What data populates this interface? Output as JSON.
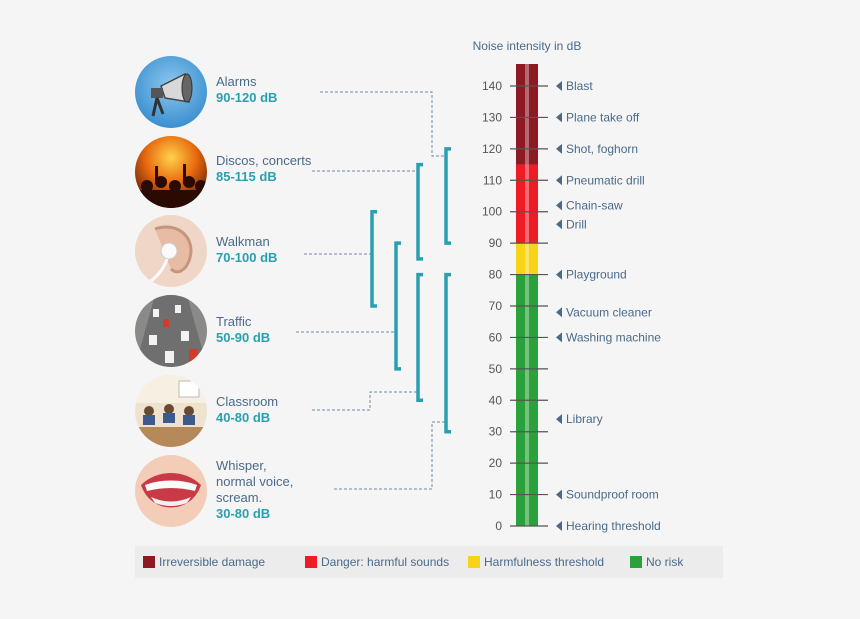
{
  "scale": {
    "title": "Noise intensity in dB",
    "ticks": [
      "0",
      "10",
      "20",
      "30",
      "40",
      "50",
      "60",
      "70",
      "80",
      "90",
      "100",
      "110",
      "120",
      "130",
      "140"
    ],
    "min": 0,
    "max": 140,
    "bands": [
      {
        "from": 0,
        "to": 80,
        "color": "#2aa13a"
      },
      {
        "from": 80,
        "to": 90,
        "color": "#f7d417"
      },
      {
        "from": 90,
        "to": 115,
        "color": "#ee1c25"
      },
      {
        "from": 115,
        "to": 145,
        "color": "#8b1a22"
      }
    ],
    "markers": [
      {
        "label": "Blast",
        "db": 140
      },
      {
        "label": "Plane take off",
        "db": 130
      },
      {
        "label": "Shot, foghorn",
        "db": 120
      },
      {
        "label": "Pneumatic drill",
        "db": 110
      },
      {
        "label": "Chain-saw",
        "db": 102
      },
      {
        "label": "Drill",
        "db": 96
      },
      {
        "label": "Playground",
        "db": 80
      },
      {
        "label": "Vacuum cleaner",
        "db": 68
      },
      {
        "label": "Washing machine",
        "db": 60
      },
      {
        "label": "Library",
        "db": 34
      },
      {
        "label": "Soundproof room",
        "db": 10
      },
      {
        "label": "Hearing threshold",
        "db": 0
      }
    ]
  },
  "sources": [
    {
      "name": "Alarms",
      "range": "90-120 dB",
      "icon": "alarm-siren-icon",
      "from": 90,
      "to": 120
    },
    {
      "name": "Discos, concerts",
      "range": "85-115 dB",
      "icon": "concert-crowd-icon",
      "from": 85,
      "to": 115
    },
    {
      "name": "Walkman",
      "range": "70-100 dB",
      "icon": "earphone-icon",
      "from": 70,
      "to": 100
    },
    {
      "name": "Traffic",
      "range": "50-90 dB",
      "icon": "traffic-icon",
      "from": 50,
      "to": 90
    },
    {
      "name": "Classroom",
      "range": "40-80 dB",
      "icon": "classroom-icon",
      "from": 40,
      "to": 80
    },
    {
      "name": "Whisper,\nnormal voice,\nscream.",
      "range": "30-80 dB",
      "icon": "mouth-icon",
      "from": 30,
      "to": 80
    }
  ],
  "legend": [
    {
      "label": "Irreversible damage",
      "color": "#8b1a22"
    },
    {
      "label": "Danger: harmful sounds",
      "color": "#ee1c25"
    },
    {
      "label": "Harmfulness threshold",
      "color": "#f7d417"
    },
    {
      "label": "No risk",
      "color": "#2aa13a"
    }
  ],
  "colors": {
    "bracket": "#2a9fb0",
    "tick_text": "#555555",
    "marker": "#4a6a8a"
  }
}
